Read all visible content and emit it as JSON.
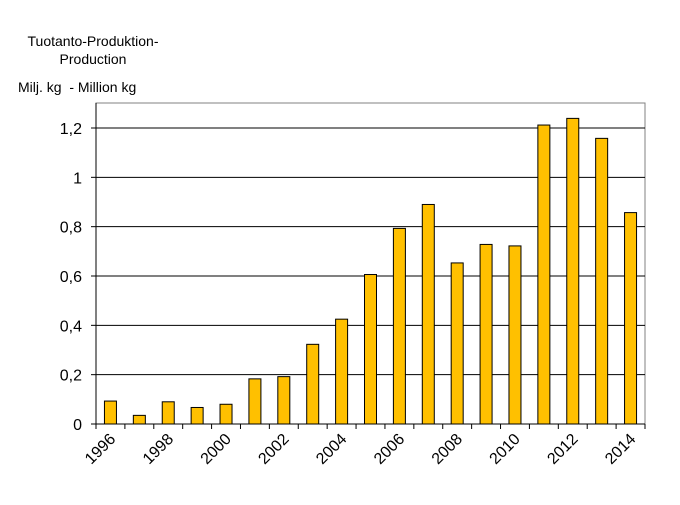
{
  "chart_data": {
    "type": "bar",
    "title_line1": "Tuotanto-Produktion-",
    "title_line2": "Production",
    "ylabel": "Milj. kg  - Million kg",
    "xlabel": "",
    "categories": [
      "1996",
      "1997",
      "1998",
      "1999",
      "2000",
      "2001",
      "2002",
      "2003",
      "2004",
      "2005",
      "2006",
      "2007",
      "2008",
      "2009",
      "2010",
      "2011",
      "2012",
      "2013",
      "2014"
    ],
    "x_tick_labels": [
      "1996",
      "1998",
      "2000",
      "2002",
      "2004",
      "2006",
      "2008",
      "2010",
      "2012",
      "2014"
    ],
    "values": [
      0.093,
      0.035,
      0.09,
      0.067,
      0.08,
      0.183,
      0.192,
      0.323,
      0.425,
      0.606,
      0.793,
      0.89,
      0.653,
      0.728,
      0.722,
      1.212,
      1.239,
      1.158,
      0.857
    ],
    "ylim": [
      0,
      1.2
    ],
    "y_ticks": [
      "0",
      "0,2",
      "0,4",
      "0,6",
      "0,8",
      "1",
      "1,2"
    ],
    "grid": true,
    "legend": "none",
    "colors": {
      "bar": "#ffc000",
      "bar_edge": "#000000",
      "grid": "#000000",
      "frame": "#808080"
    }
  }
}
